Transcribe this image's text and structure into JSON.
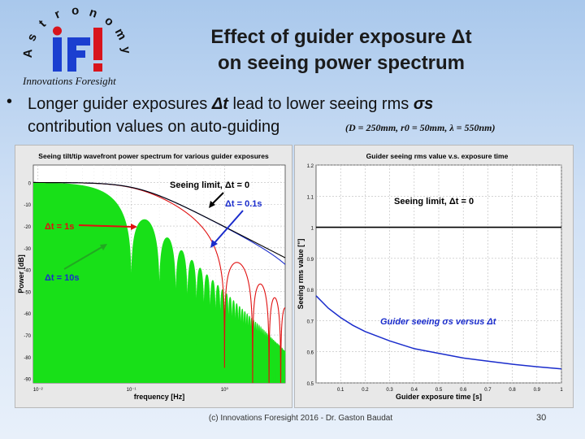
{
  "logo": {
    "letters": [
      "A",
      "s",
      "t",
      "r",
      "o",
      "n",
      "o",
      "m",
      "y"
    ],
    "mark": "iFI",
    "caption": "Innovations Foresight"
  },
  "title": {
    "line1": "Effect of guider exposure Δt",
    "line2": "on seeing power spectrum"
  },
  "bullet": {
    "symbol": "•",
    "line1_prefix": "Longer guider exposures ",
    "line1_var": "Δt",
    "line1_suffix": " lead to lower seeing rms ",
    "line1_sigma": "σs",
    "line2": "contribution values on auto-guiding",
    "params": "(D = 250mm, r0 = 50mm, λ = 550nm)"
  },
  "left_chart": {
    "title": "Seeing tilt/tip wavefront power spectrum for various guider exposures",
    "xlabel": "frequency [Hz]",
    "ylabel": "Power [dB]",
    "xticks": [
      "10⁻²",
      "10⁻¹",
      "10⁰"
    ],
    "yticks": [
      "0",
      "-10",
      "-20",
      "-30",
      "-40",
      "-50",
      "-60",
      "-70",
      "-80",
      "-90"
    ],
    "annotations": {
      "seeing_limit": "Seeing limit, Δt = 0",
      "dt01": "Δt = 0.1s",
      "dt1": "Δt = 1s",
      "dt10": "Δt = 10s"
    },
    "colors": {
      "seeing": "#000000",
      "dt01": "#1a2ccc",
      "dt1": "#e01010",
      "dt10": "#18e018",
      "arrow_blue": "#1a2ccc",
      "arrow_red": "#e01010",
      "arrow_green": "#22a822"
    }
  },
  "right_chart": {
    "title": "Guider seeing rms value v.s. exposure time",
    "xlabel": "Guider exposure time [s]",
    "ylabel": "Seeing rms value [\"]",
    "xticks": [
      "0.1",
      "0.2",
      "0.3",
      "0.4",
      "0.5",
      "0.6",
      "0.7",
      "0.8",
      "0.9",
      "1"
    ],
    "yticks": [
      "1.2",
      "1.1",
      "1",
      "0.9",
      "0.8",
      "0.7",
      "0.6",
      "0.5"
    ],
    "seeing_limit_label": "Seeing limit, Δt = 0",
    "curve_label": "Guider seeing σs versus Δt",
    "chart_data": {
      "type": "line",
      "xlabel": "Guider exposure time [s]",
      "ylabel": "Seeing rms value [\"]",
      "xlim": [
        0,
        1
      ],
      "ylim": [
        0.5,
        1.2
      ],
      "series": [
        {
          "name": "Seeing limit, Δt = 0",
          "x": [
            0,
            1
          ],
          "y": [
            1.0,
            1.0
          ]
        },
        {
          "name": "Guider seeing σs versus Δt",
          "x": [
            0.0,
            0.05,
            0.1,
            0.15,
            0.2,
            0.3,
            0.4,
            0.5,
            0.6,
            0.7,
            0.8,
            0.9,
            1.0
          ],
          "y": [
            0.78,
            0.74,
            0.71,
            0.685,
            0.665,
            0.635,
            0.61,
            0.595,
            0.58,
            0.57,
            0.56,
            0.552,
            0.545
          ]
        }
      ],
      "grid": true,
      "colors": {
        "limit": "#000000",
        "curve": "#1a2ccc"
      }
    }
  },
  "footer": {
    "text": "(c) Innovations Foresight 2016 - Dr. Gaston Baudat",
    "page": "30"
  }
}
